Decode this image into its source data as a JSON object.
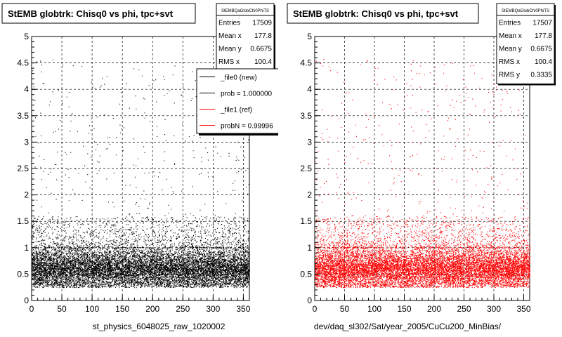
{
  "chart_data": [
    {
      "type": "scatter",
      "title": "StEMB globtrk: Chisq0 vs phi, tpc+svt",
      "xlim": [
        0,
        360
      ],
      "ylim": [
        0,
        5
      ],
      "x_ticks": [
        "0",
        "50",
        "100",
        "150",
        "200",
        "250",
        "300",
        "350"
      ],
      "y_ticks": [
        "0",
        "0.5",
        "1",
        "1.5",
        "2",
        "2.5",
        "3",
        "3.5",
        "4",
        "4.5",
        "5"
      ],
      "xlabel": "st_physics_6048025_raw_1020002",
      "ylabel": "",
      "grid": true,
      "marker_color": "#000000",
      "stats": {
        "name": "StEMBQaGlobChi0PhiTS",
        "rows": [
          {
            "label": "Entries",
            "value": "17509"
          },
          {
            "label": "Mean x",
            "value": "177.8"
          },
          {
            "label": "Mean y",
            "value": "0.6675"
          },
          {
            "label": "RMS x",
            "value": "100.4"
          }
        ]
      },
      "legend": {
        "placement": "top-right",
        "entries": [
          {
            "label": "_file0 (new)",
            "color": "#000000"
          },
          {
            "label": "prob = 1.000000",
            "color": "#000000"
          },
          {
            "label": "_file1 (ref)",
            "color": "#ff0000"
          },
          {
            "label": "probN = 0.99996",
            "color": "#ff0000"
          }
        ]
      },
      "distribution": {
        "entries": 17509,
        "core_band": [
          0.25,
          1.0
        ],
        "core_peak": 0.6,
        "sparse_max": 4.6
      }
    },
    {
      "type": "scatter",
      "title": "StEMB globtrk: Chisq0 vs phi, tpc+svt",
      "xlim": [
        0,
        360
      ],
      "ylim": [
        0,
        5
      ],
      "x_ticks": [
        "0",
        "50",
        "100",
        "150",
        "200",
        "250",
        "300",
        "350"
      ],
      "y_ticks": [
        "0",
        "0.5",
        "1",
        "1.5",
        "2",
        "2.5",
        "3",
        "3.5",
        "4",
        "4.5",
        "5"
      ],
      "xlabel": "dev/daq_sl302/Sat/year_2005/CuCu200_MinBias/",
      "ylabel": "",
      "grid": true,
      "marker_color": "#ff0000",
      "stats": {
        "name": "StEMBQaGlobChi0PhiTS",
        "rows": [
          {
            "label": "Entries",
            "value": "17507"
          },
          {
            "label": "Mean x",
            "value": "177.8"
          },
          {
            "label": "Mean y",
            "value": "0.6675"
          },
          {
            "label": "RMS x",
            "value": "100.4"
          },
          {
            "label": "RMS y",
            "value": "0.3335"
          }
        ]
      },
      "distribution": {
        "entries": 17507,
        "core_band": [
          0.25,
          1.0
        ],
        "core_peak": 0.6,
        "sparse_max": 4.6
      }
    }
  ]
}
